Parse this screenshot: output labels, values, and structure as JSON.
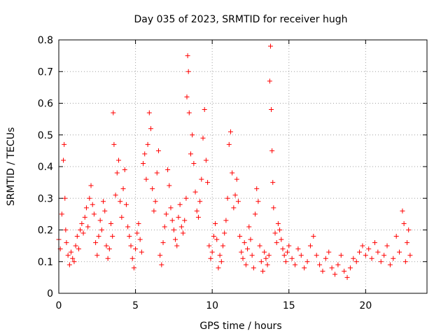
{
  "chart_data": {
    "type": "scatter",
    "title": "Day 035 of 2023, SRMTID for receiver hugh",
    "xlabel": "GPS time / hours",
    "ylabel": "SRMTID / TECUs",
    "xlim": [
      0,
      24
    ],
    "ylim": [
      0,
      0.8
    ],
    "xticks": [
      0,
      5,
      10,
      15,
      20
    ],
    "xtick_labels": [
      "0",
      "5",
      "10",
      "15",
      "20"
    ],
    "yticks": [
      0,
      0.1,
      0.2,
      0.3,
      0.4,
      0.5,
      0.6,
      0.7,
      0.8
    ],
    "ytick_labels": [
      "0",
      "0.1",
      "0.2",
      "0.3",
      "0.4",
      "0.5",
      "0.6",
      "0.7",
      "0.8"
    ],
    "grid": true,
    "legend": "none",
    "marker": "+",
    "color": "#ff0000",
    "series": [
      {
        "name": "SRMTID",
        "points": [
          [
            0.0,
            0.17
          ],
          [
            0.1,
            0.14
          ],
          [
            0.2,
            0.25
          ],
          [
            0.3,
            0.42
          ],
          [
            0.35,
            0.47
          ],
          [
            0.4,
            0.3
          ],
          [
            0.45,
            0.2
          ],
          [
            0.5,
            0.16
          ],
          [
            0.6,
            0.12
          ],
          [
            0.7,
            0.09
          ],
          [
            0.8,
            0.13
          ],
          [
            0.9,
            0.11
          ],
          [
            1.0,
            0.1
          ],
          [
            1.1,
            0.15
          ],
          [
            1.2,
            0.18
          ],
          [
            1.3,
            0.14
          ],
          [
            1.4,
            0.2
          ],
          [
            1.5,
            0.22
          ],
          [
            1.6,
            0.19
          ],
          [
            1.7,
            0.24
          ],
          [
            1.8,
            0.27
          ],
          [
            1.9,
            0.21
          ],
          [
            2.0,
            0.3
          ],
          [
            2.1,
            0.34
          ],
          [
            2.2,
            0.28
          ],
          [
            2.3,
            0.25
          ],
          [
            2.4,
            0.16
          ],
          [
            2.5,
            0.12
          ],
          [
            2.6,
            0.18
          ],
          [
            2.7,
            0.23
          ],
          [
            2.8,
            0.2
          ],
          [
            2.9,
            0.29
          ],
          [
            3.0,
            0.26
          ],
          [
            3.1,
            0.15
          ],
          [
            3.2,
            0.11
          ],
          [
            3.3,
            0.14
          ],
          [
            3.4,
            0.22
          ],
          [
            3.5,
            0.18
          ],
          [
            3.55,
            0.57
          ],
          [
            3.6,
            0.47
          ],
          [
            3.7,
            0.31
          ],
          [
            3.8,
            0.38
          ],
          [
            3.9,
            0.42
          ],
          [
            4.0,
            0.29
          ],
          [
            4.1,
            0.24
          ],
          [
            4.2,
            0.33
          ],
          [
            4.3,
            0.39
          ],
          [
            4.4,
            0.28
          ],
          [
            4.5,
            0.21
          ],
          [
            4.6,
            0.18
          ],
          [
            4.7,
            0.15
          ],
          [
            4.8,
            0.11
          ],
          [
            4.9,
            0.08
          ],
          [
            5.0,
            0.14
          ],
          [
            5.1,
            0.19
          ],
          [
            5.2,
            0.22
          ],
          [
            5.3,
            0.17
          ],
          [
            5.4,
            0.13
          ],
          [
            5.5,
            0.41
          ],
          [
            5.6,
            0.44
          ],
          [
            5.7,
            0.36
          ],
          [
            5.8,
            0.47
          ],
          [
            5.9,
            0.57
          ],
          [
            6.0,
            0.52
          ],
          [
            6.1,
            0.33
          ],
          [
            6.2,
            0.26
          ],
          [
            6.3,
            0.29
          ],
          [
            6.4,
            0.38
          ],
          [
            6.5,
            0.45
          ],
          [
            6.6,
            0.12
          ],
          [
            6.7,
            0.09
          ],
          [
            6.8,
            0.16
          ],
          [
            6.9,
            0.21
          ],
          [
            7.0,
            0.25
          ],
          [
            7.1,
            0.39
          ],
          [
            7.2,
            0.34
          ],
          [
            7.3,
            0.27
          ],
          [
            7.4,
            0.23
          ],
          [
            7.5,
            0.2
          ],
          [
            7.6,
            0.17
          ],
          [
            7.7,
            0.15
          ],
          [
            7.8,
            0.24
          ],
          [
            7.9,
            0.28
          ],
          [
            8.0,
            0.21
          ],
          [
            8.1,
            0.19
          ],
          [
            8.2,
            0.23
          ],
          [
            8.3,
            0.3
          ],
          [
            8.35,
            0.62
          ],
          [
            8.4,
            0.75
          ],
          [
            8.45,
            0.7
          ],
          [
            8.5,
            0.57
          ],
          [
            8.6,
            0.44
          ],
          [
            8.7,
            0.5
          ],
          [
            8.8,
            0.41
          ],
          [
            8.9,
            0.32
          ],
          [
            9.0,
            0.26
          ],
          [
            9.1,
            0.24
          ],
          [
            9.2,
            0.29
          ],
          [
            9.3,
            0.36
          ],
          [
            9.4,
            0.49
          ],
          [
            9.5,
            0.58
          ],
          [
            9.6,
            0.42
          ],
          [
            9.7,
            0.35
          ],
          [
            9.8,
            0.15
          ],
          [
            9.9,
            0.11
          ],
          [
            10.0,
            0.13
          ],
          [
            10.1,
            0.18
          ],
          [
            10.2,
            0.22
          ],
          [
            10.3,
            0.17
          ],
          [
            10.4,
            0.08
          ],
          [
            10.5,
            0.12
          ],
          [
            10.6,
            0.1
          ],
          [
            10.7,
            0.15
          ],
          [
            10.8,
            0.19
          ],
          [
            10.9,
            0.23
          ],
          [
            11.0,
            0.3
          ],
          [
            11.1,
            0.47
          ],
          [
            11.2,
            0.51
          ],
          [
            11.3,
            0.38
          ],
          [
            11.4,
            0.27
          ],
          [
            11.5,
            0.31
          ],
          [
            11.6,
            0.36
          ],
          [
            11.7,
            0.29
          ],
          [
            11.8,
            0.18
          ],
          [
            11.9,
            0.13
          ],
          [
            12.0,
            0.11
          ],
          [
            12.1,
            0.16
          ],
          [
            12.2,
            0.09
          ],
          [
            12.3,
            0.14
          ],
          [
            12.4,
            0.21
          ],
          [
            12.5,
            0.17
          ],
          [
            12.6,
            0.12
          ],
          [
            12.7,
            0.08
          ],
          [
            12.8,
            0.25
          ],
          [
            12.9,
            0.33
          ],
          [
            13.0,
            0.29
          ],
          [
            13.1,
            0.15
          ],
          [
            13.2,
            0.1
          ],
          [
            13.3,
            0.07
          ],
          [
            13.4,
            0.13
          ],
          [
            13.5,
            0.11
          ],
          [
            13.6,
            0.09
          ],
          [
            13.7,
            0.12
          ],
          [
            13.75,
            0.67
          ],
          [
            13.8,
            0.78
          ],
          [
            13.85,
            0.58
          ],
          [
            13.9,
            0.45
          ],
          [
            13.95,
            0.35
          ],
          [
            14.0,
            0.27
          ],
          [
            14.1,
            0.19
          ],
          [
            14.2,
            0.16
          ],
          [
            14.3,
            0.22
          ],
          [
            14.4,
            0.2
          ],
          [
            14.5,
            0.17
          ],
          [
            14.6,
            0.14
          ],
          [
            14.7,
            0.12
          ],
          [
            14.8,
            0.1
          ],
          [
            14.9,
            0.13
          ],
          [
            15.0,
            0.15
          ],
          [
            15.2,
            0.11
          ],
          [
            15.4,
            0.09
          ],
          [
            15.6,
            0.14
          ],
          [
            15.8,
            0.12
          ],
          [
            16.0,
            0.08
          ],
          [
            16.2,
            0.1
          ],
          [
            16.4,
            0.15
          ],
          [
            16.6,
            0.18
          ],
          [
            16.8,
            0.12
          ],
          [
            17.0,
            0.09
          ],
          [
            17.2,
            0.07
          ],
          [
            17.4,
            0.11
          ],
          [
            17.6,
            0.13
          ],
          [
            17.8,
            0.08
          ],
          [
            18.0,
            0.06
          ],
          [
            18.2,
            0.09
          ],
          [
            18.4,
            0.12
          ],
          [
            18.6,
            0.07
          ],
          [
            18.8,
            0.05
          ],
          [
            19.0,
            0.08
          ],
          [
            19.2,
            0.11
          ],
          [
            19.4,
            0.1
          ],
          [
            19.6,
            0.13
          ],
          [
            19.8,
            0.15
          ],
          [
            20.0,
            0.12
          ],
          [
            20.2,
            0.14
          ],
          [
            20.4,
            0.11
          ],
          [
            20.6,
            0.16
          ],
          [
            20.8,
            0.13
          ],
          [
            21.0,
            0.1
          ],
          [
            21.2,
            0.12
          ],
          [
            21.4,
            0.15
          ],
          [
            21.6,
            0.09
          ],
          [
            21.8,
            0.11
          ],
          [
            22.0,
            0.18
          ],
          [
            22.2,
            0.13
          ],
          [
            22.4,
            0.26
          ],
          [
            22.5,
            0.22
          ],
          [
            22.6,
            0.1
          ],
          [
            22.7,
            0.16
          ],
          [
            22.8,
            0.2
          ],
          [
            22.9,
            0.12
          ]
        ]
      }
    ]
  }
}
